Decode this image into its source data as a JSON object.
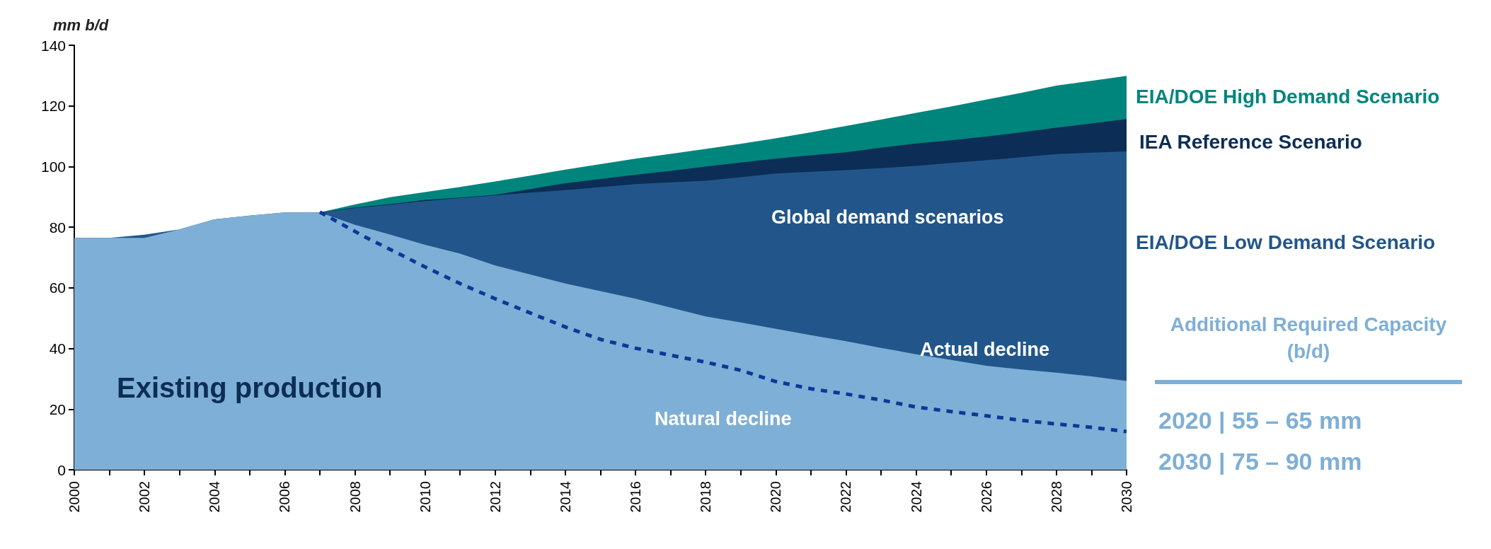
{
  "chart_data": {
    "type": "area",
    "stacked": true,
    "ylabel": "mm b/d",
    "x": [
      2000,
      2001,
      2002,
      2003,
      2004,
      2005,
      2006,
      2007,
      2008,
      2009,
      2010,
      2011,
      2012,
      2013,
      2014,
      2015,
      2016,
      2017,
      2018,
      2019,
      2020,
      2021,
      2022,
      2023,
      2024,
      2025,
      2026,
      2027,
      2028,
      2029,
      2030
    ],
    "series": [
      {
        "name": "Existing production",
        "color": "#7eafd6",
        "values": [
          76.5,
          76.5,
          76.5,
          79.3,
          82.6,
          83.8,
          84.9,
          84.9,
          80.8,
          77.6,
          74.2,
          71.3,
          67.4,
          64.4,
          61.4,
          58.9,
          56.4,
          53.5,
          50.6,
          48.6,
          46.5,
          44.4,
          42.4,
          40.2,
          38.1,
          36.2,
          34.3,
          33.1,
          32,
          30.8,
          29.3
        ]
      },
      {
        "name": "EIA/DOE Low Demand Scenario",
        "color": "#22568a",
        "values": [
          0,
          0,
          1,
          0,
          0,
          0,
          0,
          0,
          5.5,
          9.8,
          14.4,
          18.3,
          23.1,
          27,
          30.8,
          34.3,
          37.8,
          41.3,
          44.7,
          47.9,
          51.2,
          53.9,
          56.4,
          59.3,
          62.1,
          65,
          67.8,
          70,
          72.1,
          73.8,
          75.7
        ]
      },
      {
        "name": "IEA Reference Scenario",
        "color": "#0c2d55",
        "values": [
          null,
          null,
          null,
          null,
          null,
          null,
          null,
          0,
          0.2,
          0.2,
          0.4,
          0.2,
          0.2,
          1.2,
          2.3,
          2.7,
          3.1,
          3.8,
          4.7,
          4.8,
          4.9,
          5.4,
          5.9,
          6.7,
          7.4,
          7.5,
          7.8,
          8.2,
          8.7,
          9.6,
          10.7
        ]
      },
      {
        "name": "EIA/DOE High Demand Scenario",
        "color": "#00857d",
        "values": [
          null,
          null,
          null,
          null,
          null,
          null,
          null,
          0,
          1,
          2.3,
          2.6,
          3.5,
          4.4,
          4.4,
          4.5,
          4.9,
          5.3,
          5.6,
          5.8,
          6.2,
          6.7,
          7.6,
          8.7,
          9.3,
          10.1,
          11.1,
          12.2,
          13,
          13.9,
          14.1,
          14.2
        ]
      },
      {
        "name": "Natural decline",
        "type": "line",
        "line_style": "dashed",
        "color": "#0a3a96",
        "x": [
          2007,
          2008.3,
          2009,
          2010,
          2011,
          2012,
          2013,
          2014,
          2015,
          2016,
          2017,
          2018,
          2019,
          2020,
          2021,
          2022,
          2023,
          2024,
          2025,
          2026,
          2027,
          2028,
          2029,
          2030
        ],
        "values": [
          85,
          76.7,
          72.7,
          66.9,
          61.4,
          56.4,
          51.7,
          47.1,
          43,
          40.1,
          37.8,
          35.5,
          32.8,
          29.1,
          26.7,
          25,
          23,
          20.7,
          19.2,
          17.8,
          16.3,
          15.1,
          14,
          12.6
        ]
      }
    ],
    "xlim": [
      2000,
      2030
    ],
    "xticks": [
      2000,
      {
        "value": 2001,
        "label": null
      },
      2002,
      {
        "value": 2003,
        "label": null
      },
      2004,
      {
        "value": 2005,
        "label": null
      },
      2006,
      {
        "value": 2007,
        "label": null
      },
      2008,
      {
        "value": 2009,
        "label": null
      },
      2010,
      {
        "value": 2011,
        "label": null
      },
      2012,
      {
        "value": 2013,
        "label": null
      },
      2014,
      {
        "value": 2015,
        "label": null
      },
      2016,
      {
        "value": 2017,
        "label": null
      },
      2018,
      {
        "value": 2019,
        "label": null
      },
      2020,
      {
        "value": 2021,
        "label": null
      },
      2022,
      {
        "value": 2023,
        "label": null
      },
      2024,
      {
        "value": 2025,
        "label": null
      },
      2026,
      {
        "value": 2027,
        "label": null
      },
      2028,
      {
        "value": 2029,
        "label": null
      },
      2030
    ],
    "ylim": [
      0,
      140
    ],
    "yticks": [
      0,
      20,
      40,
      60,
      80,
      100,
      120,
      140
    ],
    "grid": false,
    "legend": false,
    "marker": "none",
    "annotations": [
      "Global demand scenarios",
      "Actual decline",
      "Additional Required Capacity (b/d)",
      "2020 | 55 – 65 mm",
      "2030 | 75 – 90 mm"
    ]
  }
}
